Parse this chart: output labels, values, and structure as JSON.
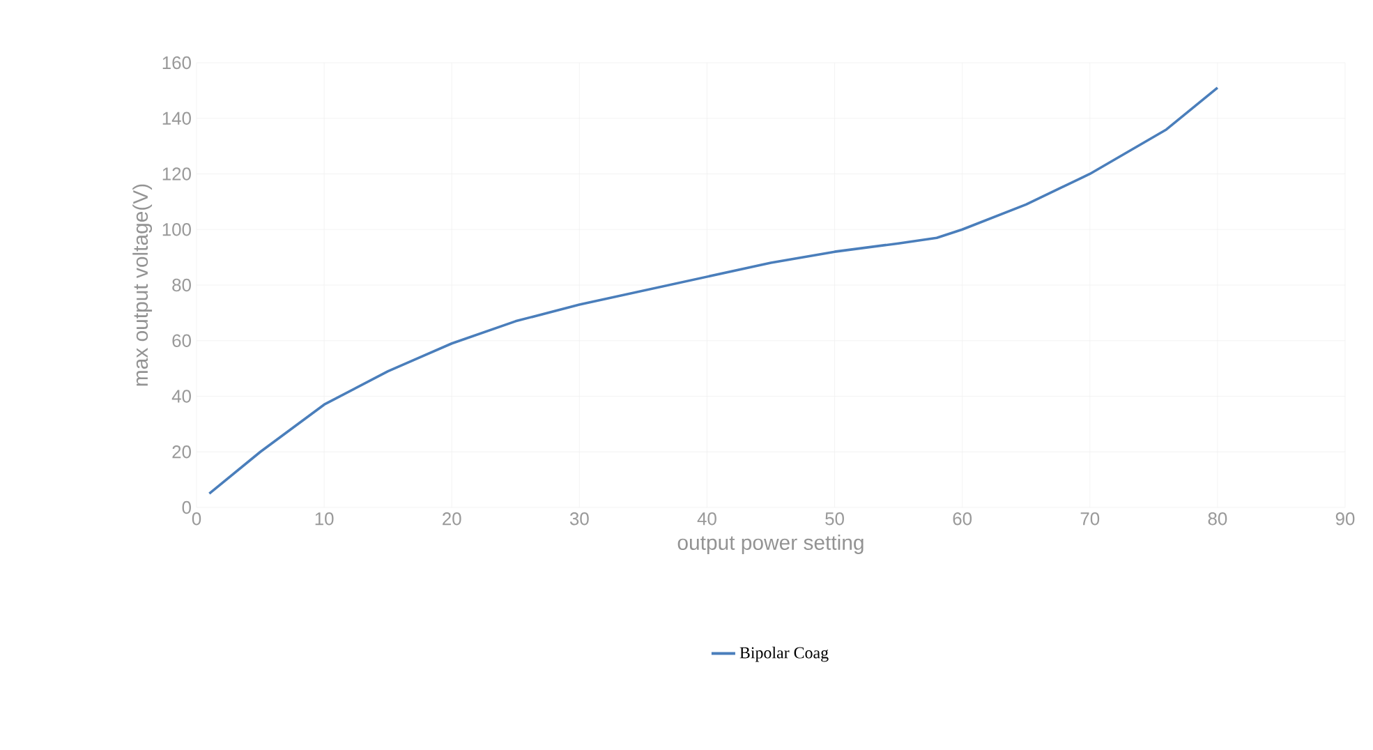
{
  "chart_data": {
    "type": "line",
    "xlabel": "output power setting",
    "ylabel": "max output voltage(V)",
    "xlim": [
      0,
      90
    ],
    "xticks": [
      0,
      10,
      20,
      30,
      40,
      50,
      60,
      70,
      80,
      90
    ],
    "ylim": [
      0,
      160
    ],
    "yticks": [
      0,
      20,
      40,
      60,
      80,
      100,
      120,
      140,
      160
    ],
    "grid": true,
    "legend": "bottom",
    "marker": "none",
    "line_style": "solid",
    "series": [
      {
        "name": "Bipolar Coag",
        "color": "#4a7ebb",
        "x": [
          1,
          5,
          10,
          15,
          20,
          25,
          30,
          35,
          40,
          45,
          50,
          55,
          58,
          60,
          65,
          70,
          76,
          80
        ],
        "values": [
          5,
          20,
          37,
          49,
          59,
          67,
          73,
          78,
          83,
          88,
          92,
          95,
          97,
          100,
          109,
          120,
          136,
          151
        ]
      }
    ]
  }
}
